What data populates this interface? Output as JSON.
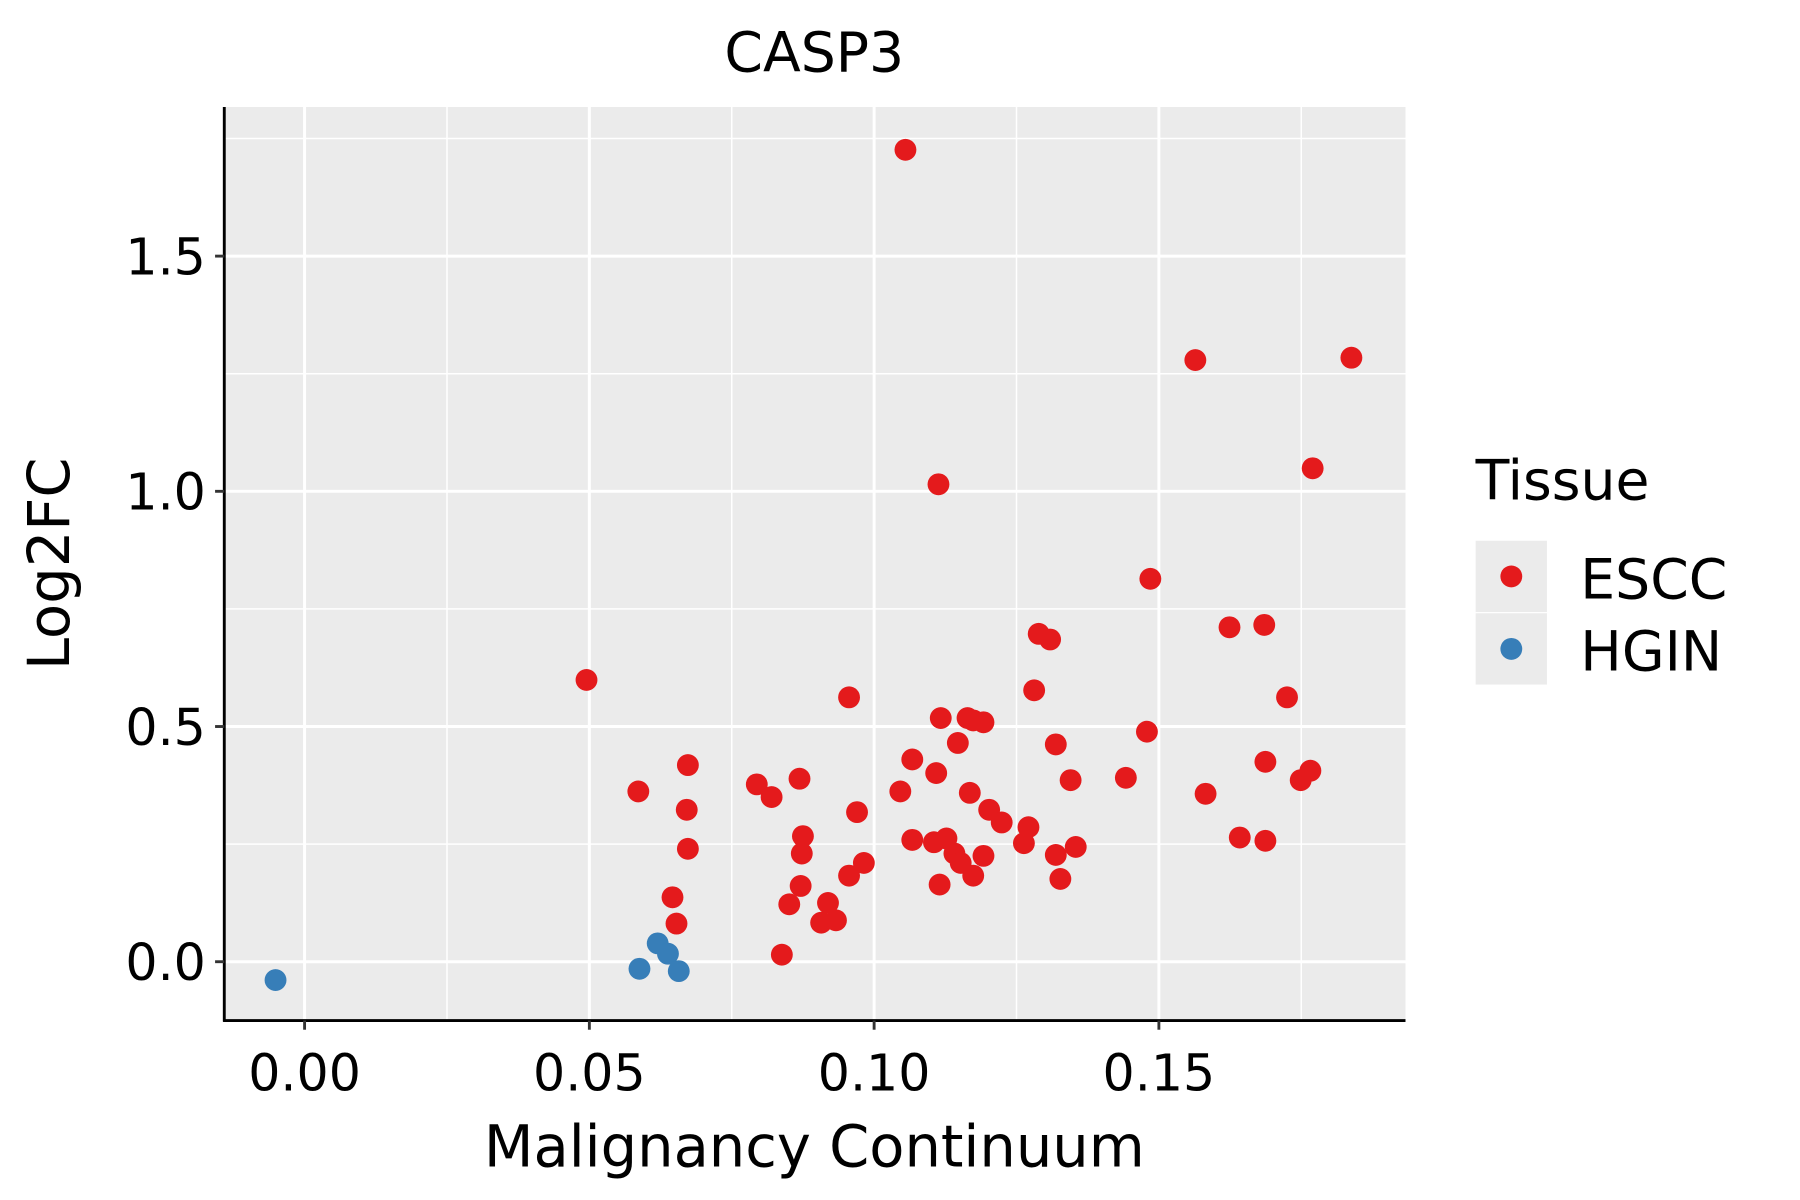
{
  "chart_data": {
    "type": "scatter",
    "title": "CASP3",
    "xlabel": "Malignancy Continuum",
    "ylabel": "Log2FC",
    "xlim": [
      -0.0141,
      0.1933
    ],
    "ylim": [
      -0.125,
      1.817
    ],
    "xticks": [
      0.0,
      0.05,
      0.1,
      0.15
    ],
    "xtick_labels": [
      "0.00",
      "0.05",
      "0.10",
      "0.15"
    ],
    "yticks": [
      0.0,
      0.5,
      1.0,
      1.5
    ],
    "ytick_labels": [
      "0.0",
      "0.5",
      "1.0",
      "1.5"
    ],
    "grid": true,
    "legend": {
      "title": "Tissue",
      "placement": "right",
      "entries": [
        "ESCC",
        "HGIN"
      ]
    },
    "series": [
      {
        "name": "ESCC",
        "color": "#E41A1C",
        "points": [
          [
            0.1055,
            1.726
          ],
          [
            0.0495,
            0.599
          ],
          [
            0.0586,
            0.362
          ],
          [
            0.0673,
            0.418
          ],
          [
            0.0671,
            0.323
          ],
          [
            0.0673,
            0.24
          ],
          [
            0.0646,
            0.137
          ],
          [
            0.0653,
            0.081
          ],
          [
            0.0794,
            0.377
          ],
          [
            0.082,
            0.35
          ],
          [
            0.0869,
            0.389
          ],
          [
            0.0875,
            0.267
          ],
          [
            0.0873,
            0.23
          ],
          [
            0.0871,
            0.161
          ],
          [
            0.0851,
            0.122
          ],
          [
            0.0838,
            0.015
          ],
          [
            0.0907,
            0.083
          ],
          [
            0.0919,
            0.125
          ],
          [
            0.0933,
            0.088
          ],
          [
            0.0956,
            0.562
          ],
          [
            0.097,
            0.318
          ],
          [
            0.0956,
            0.183
          ],
          [
            0.0982,
            0.21
          ],
          [
            0.1046,
            0.362
          ],
          [
            0.1067,
            0.43
          ],
          [
            0.1067,
            0.259
          ],
          [
            0.1113,
            1.015
          ],
          [
            0.1117,
            0.518
          ],
          [
            0.1109,
            0.401
          ],
          [
            0.1105,
            0.254
          ],
          [
            0.1127,
            0.262
          ],
          [
            0.1115,
            0.164
          ],
          [
            0.1141,
            0.23
          ],
          [
            0.1152,
            0.21
          ],
          [
            0.1174,
            0.183
          ],
          [
            0.1147,
            0.465
          ],
          [
            0.1164,
            0.518
          ],
          [
            0.1174,
            0.513
          ],
          [
            0.1192,
            0.509
          ],
          [
            0.1168,
            0.359
          ],
          [
            0.1202,
            0.323
          ],
          [
            0.1224,
            0.296
          ],
          [
            0.1192,
            0.225
          ],
          [
            0.1263,
            0.252
          ],
          [
            0.1271,
            0.286
          ],
          [
            0.1281,
            0.577
          ],
          [
            0.1289,
            0.697
          ],
          [
            0.1309,
            0.685
          ],
          [
            0.1319,
            0.462
          ],
          [
            0.1345,
            0.386
          ],
          [
            0.1319,
            0.227
          ],
          [
            0.1327,
            0.176
          ],
          [
            0.1354,
            0.244
          ],
          [
            0.1442,
            0.391
          ],
          [
            0.1479,
            0.489
          ],
          [
            0.1485,
            0.814
          ],
          [
            0.1564,
            1.279
          ],
          [
            0.1582,
            0.357
          ],
          [
            0.1624,
            0.711
          ],
          [
            0.1642,
            0.264
          ],
          [
            0.1685,
            0.716
          ],
          [
            0.1687,
            0.425
          ],
          [
            0.1687,
            0.257
          ],
          [
            0.1725,
            0.562
          ],
          [
            0.177,
            1.049
          ],
          [
            0.1749,
            0.386
          ],
          [
            0.1766,
            0.406
          ],
          [
            0.1838,
            1.284
          ]
        ]
      },
      {
        "name": "HGIN",
        "color": "#377EB8",
        "points": [
          [
            -0.0051,
            -0.039
          ],
          [
            0.0588,
            -0.015
          ],
          [
            0.062,
            0.039
          ],
          [
            0.0638,
            0.017
          ],
          [
            0.0657,
            -0.02
          ]
        ]
      }
    ]
  }
}
